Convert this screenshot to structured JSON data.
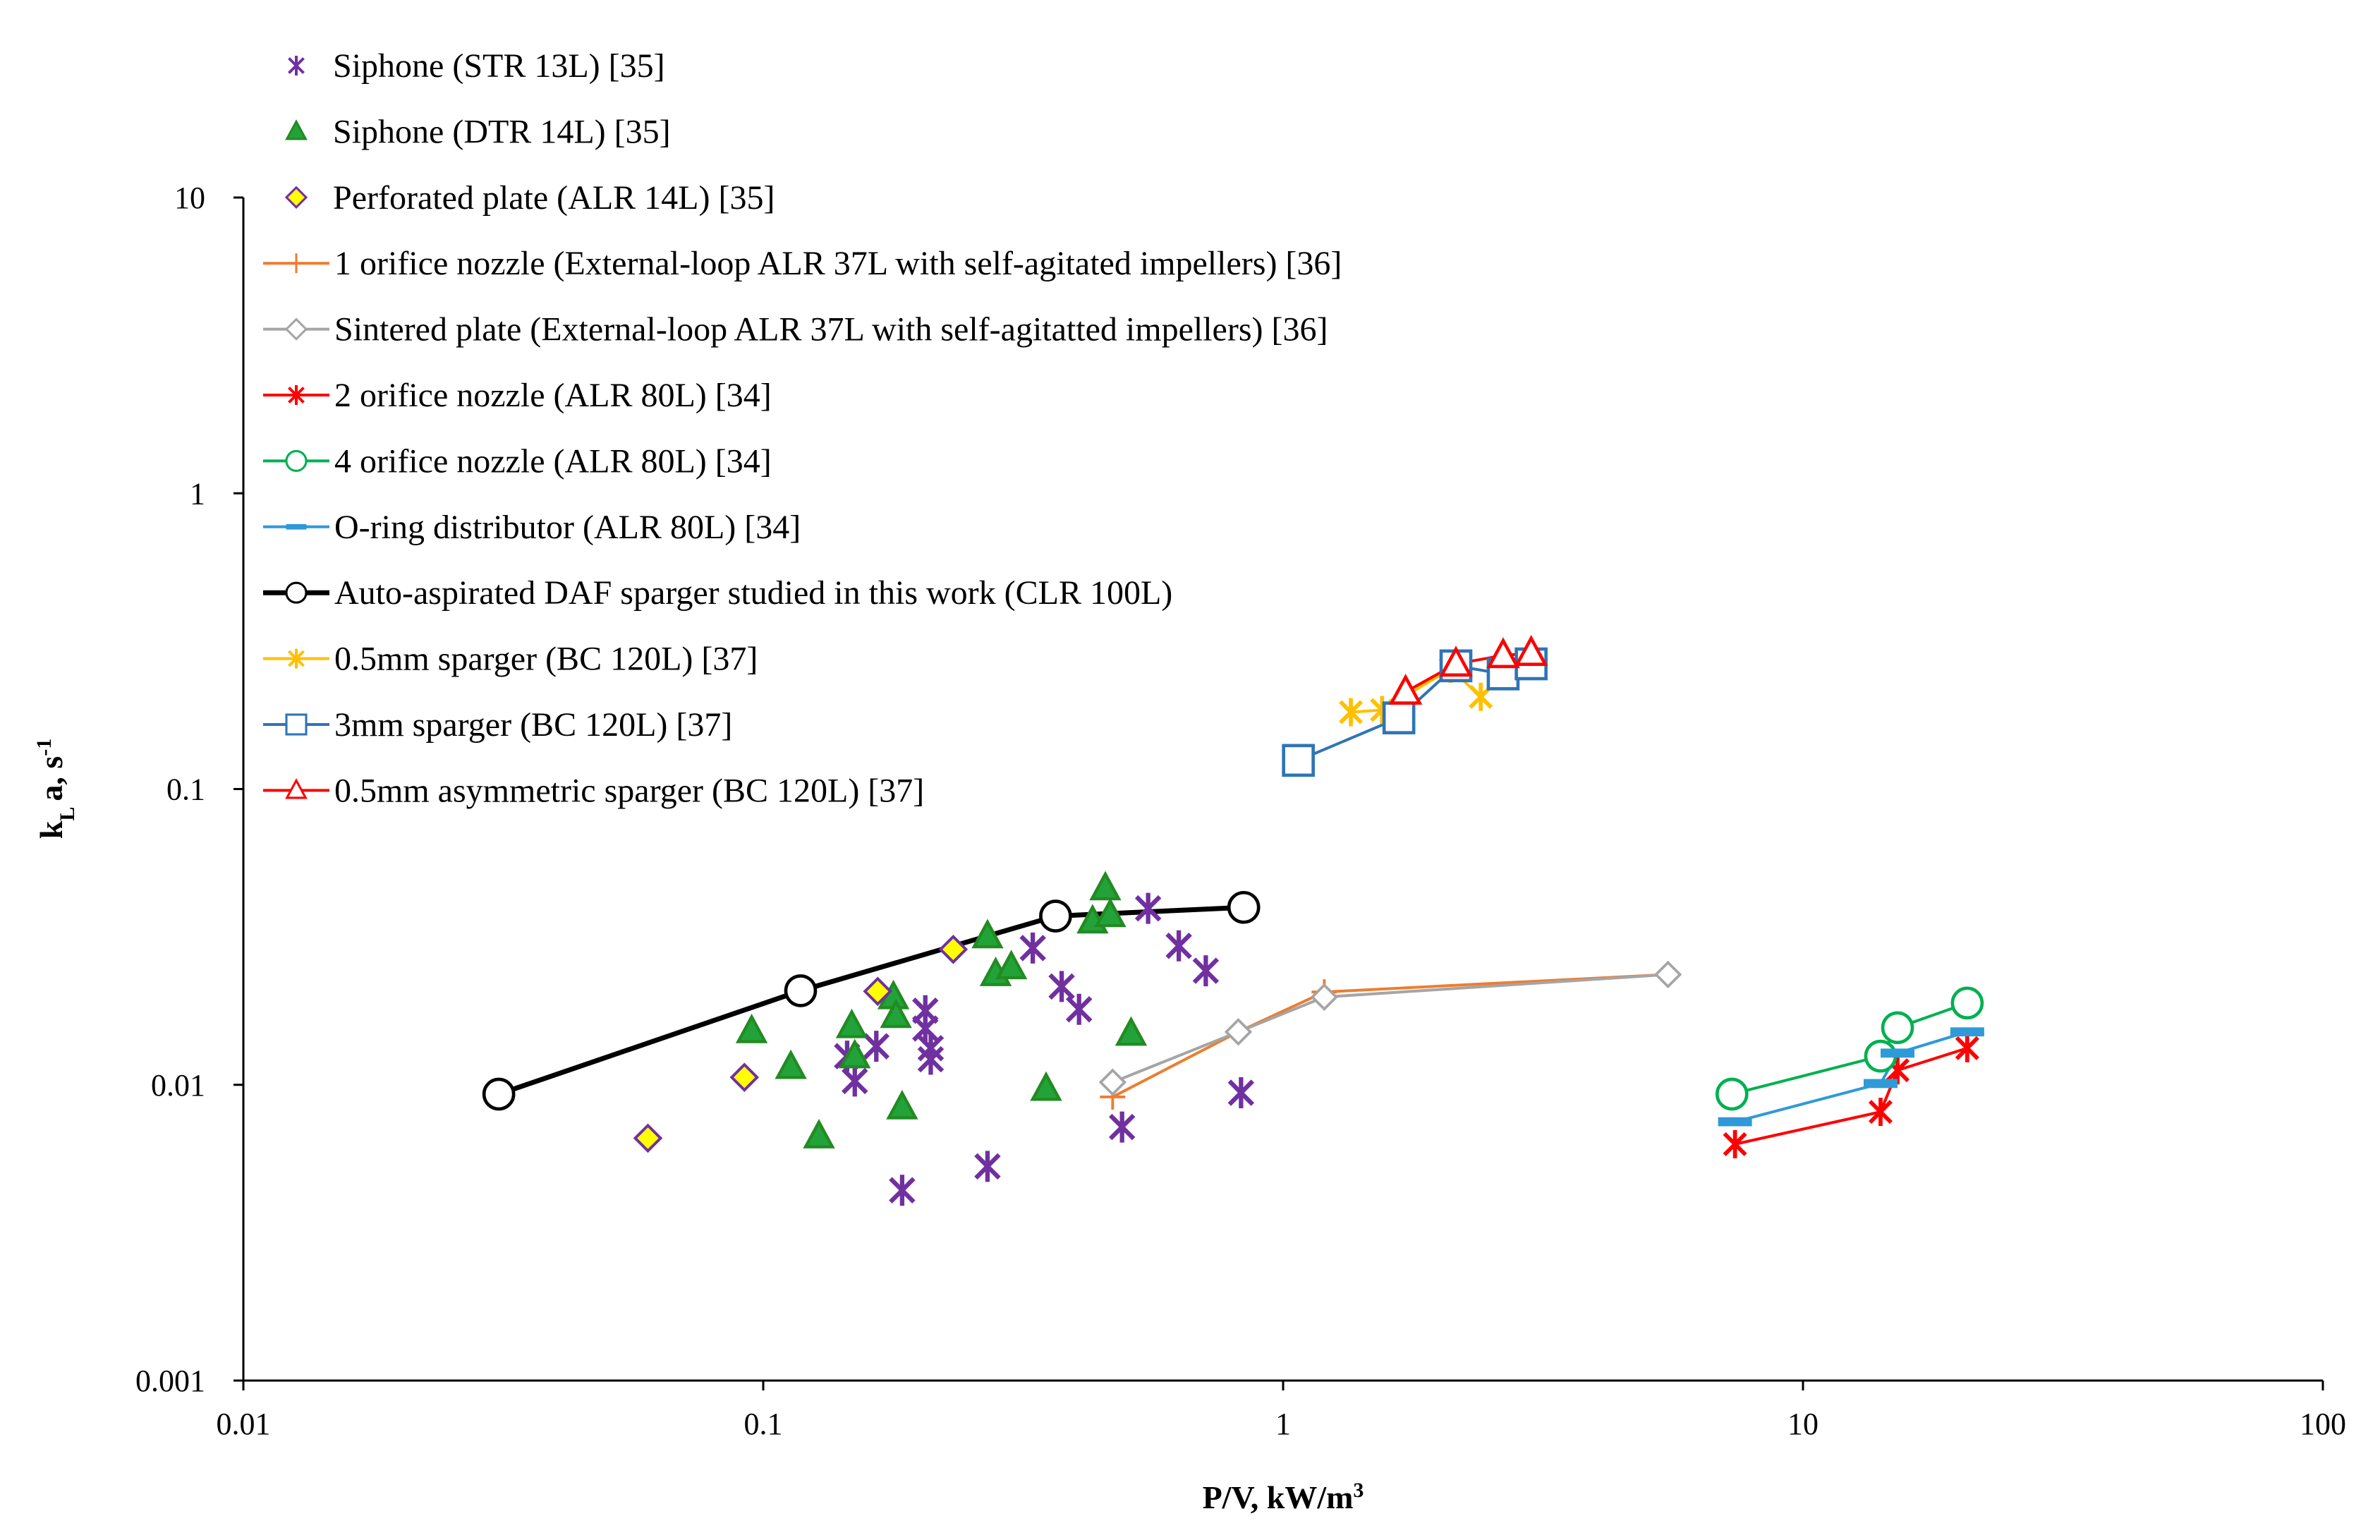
{
  "chart_data": {
    "type": "scatter",
    "title": "",
    "xlabel": "P/V, kW/m",
    "xlabel_sup": "3",
    "ylabel_main": "k",
    "ylabel_sub": "L",
    "ylabel_rest": "a, s",
    "ylabel_sup": "-1",
    "xscale": "log",
    "yscale": "log",
    "xlim": [
      0.01,
      100
    ],
    "ylim": [
      0.001,
      10
    ],
    "x_ticks": [
      "0.01",
      "0.1",
      "1",
      "10",
      "100"
    ],
    "y_ticks": [
      "0.001",
      "0.01",
      "0.1",
      "1",
      "10"
    ],
    "x_tick_values": [
      0.01,
      0.1,
      1,
      10,
      100
    ],
    "y_tick_values": [
      0.001,
      0.01,
      0.1,
      1,
      10
    ],
    "grid": false,
    "legend_position": "top-left",
    "series": [
      {
        "name": "Siphone (STR 13L) [35]",
        "marker": "asterisk",
        "color": "#7030A0",
        "fill": "none",
        "line": false,
        "x": [
          0.145,
          0.15,
          0.165,
          0.185,
          0.205,
          0.205,
          0.21,
          0.21,
          0.27,
          0.33,
          0.375,
          0.405,
          0.49,
          0.55,
          0.63,
          0.71,
          0.83
        ],
        "y": [
          0.0125,
          0.0103,
          0.0135,
          0.0044,
          0.0178,
          0.0155,
          0.0122,
          0.0133,
          0.0053,
          0.029,
          0.0215,
          0.018,
          0.0072,
          0.0395,
          0.0295,
          0.0243,
          0.0094
        ]
      },
      {
        "name": "Siphone (DTR 14L) [35]",
        "marker": "triangle",
        "color": "#228B22",
        "fill": "#22A33A",
        "line": false,
        "x": [
          0.095,
          0.113,
          0.128,
          0.148,
          0.15,
          0.178,
          0.18,
          0.185,
          0.27,
          0.28,
          0.3,
          0.35,
          0.43,
          0.455,
          0.465,
          0.51
        ],
        "y": [
          0.0152,
          0.0115,
          0.0067,
          0.0158,
          0.0125,
          0.0198,
          0.0171,
          0.0084,
          0.0318,
          0.0237,
          0.025,
          0.0097,
          0.0357,
          0.0462,
          0.0375,
          0.0149
        ]
      },
      {
        "name": "Perforated plate (ALR 14L) [35]",
        "marker": "diamond",
        "color": "#7030A0",
        "fill": "#FFFF00",
        "line": false,
        "x": [
          0.06,
          0.092,
          0.166,
          0.232
        ],
        "y": [
          0.0066,
          0.0106,
          0.0207,
          0.0287
        ]
      },
      {
        "name": "1 orifice nozzle (External-loop ALR 37L with self-agitated impellers) [36]",
        "marker": "plus",
        "color": "#ED7D31",
        "fill": "none",
        "line": true,
        "x": [
          0.47,
          0.82,
          1.2,
          5.5
        ],
        "y": [
          0.0091,
          0.0151,
          0.0206,
          0.0236
        ]
      },
      {
        "name": "Sintered plate (External-loop ALR 37L with self-agitatted impellers) [36]",
        "marker": "diamond",
        "color": "#A5A5A5",
        "fill": "#ffffff",
        "line": true,
        "x": [
          0.47,
          0.82,
          1.2,
          5.5
        ],
        "y": [
          0.0102,
          0.0151,
          0.0198,
          0.0236
        ]
      },
      {
        "name": "2 orifice nozzle (ALR 80L) [34]",
        "marker": "asterisk",
        "color": "#FF0000",
        "fill": "none",
        "line": true,
        "x": [
          7.4,
          14.1,
          15.2,
          20.7
        ],
        "y": [
          0.0063,
          0.0081,
          0.0112,
          0.0133
        ]
      },
      {
        "name": "4 orifice nozzle (ALR 80L) [34]",
        "marker": "circle",
        "color": "#00B050",
        "fill": "#ffffff",
        "line": true,
        "x": [
          7.3,
          14.1,
          15.2,
          20.7
        ],
        "y": [
          0.0093,
          0.0125,
          0.0156,
          0.0189
        ]
      },
      {
        "name": "O-ring distributor (ALR 80L) [34]",
        "marker": "dash",
        "color": "#2E9AD8",
        "fill": "none",
        "line": true,
        "x": [
          7.4,
          14.1,
          15.2,
          20.7
        ],
        "y": [
          0.0075,
          0.0101,
          0.0128,
          0.0151
        ]
      },
      {
        "name": "Auto-aspirated DAF sparger studied in this work (CLR 100L)",
        "marker": "circle",
        "color": "#000000",
        "fill": "#ffffff",
        "line": true,
        "thick": true,
        "x": [
          0.031,
          0.118,
          0.365,
          0.84
        ],
        "y": [
          0.0093,
          0.0208,
          0.0372,
          0.0398
        ]
      },
      {
        "name": "0.5mm sparger (BC 120L) [37]",
        "marker": "asterisk",
        "color": "#FFC000",
        "fill": "none",
        "line": true,
        "x": [
          1.35,
          1.55,
          2.1,
          2.4,
          2.65
        ],
        "y": [
          0.182,
          0.185,
          0.255,
          0.205,
          0.245
        ]
      },
      {
        "name": "3mm sparger (BC 120L) [37]",
        "marker": "square",
        "color": "#2E75B6",
        "fill": "#ffffff",
        "line": true,
        "x": [
          1.07,
          1.67,
          2.15,
          2.65,
          3.0
        ],
        "y": [
          0.125,
          0.174,
          0.261,
          0.245,
          0.265
        ]
      },
      {
        "name": "0.5mm asymmetric sparger (BC 120L) [37]",
        "marker": "triangle",
        "color": "#FF0000",
        "fill": "#ffffff",
        "line": true,
        "x": [
          1.72,
          2.15,
          2.65,
          3.0
        ],
        "y": [
          0.213,
          0.265,
          0.283,
          0.288
        ]
      }
    ]
  }
}
